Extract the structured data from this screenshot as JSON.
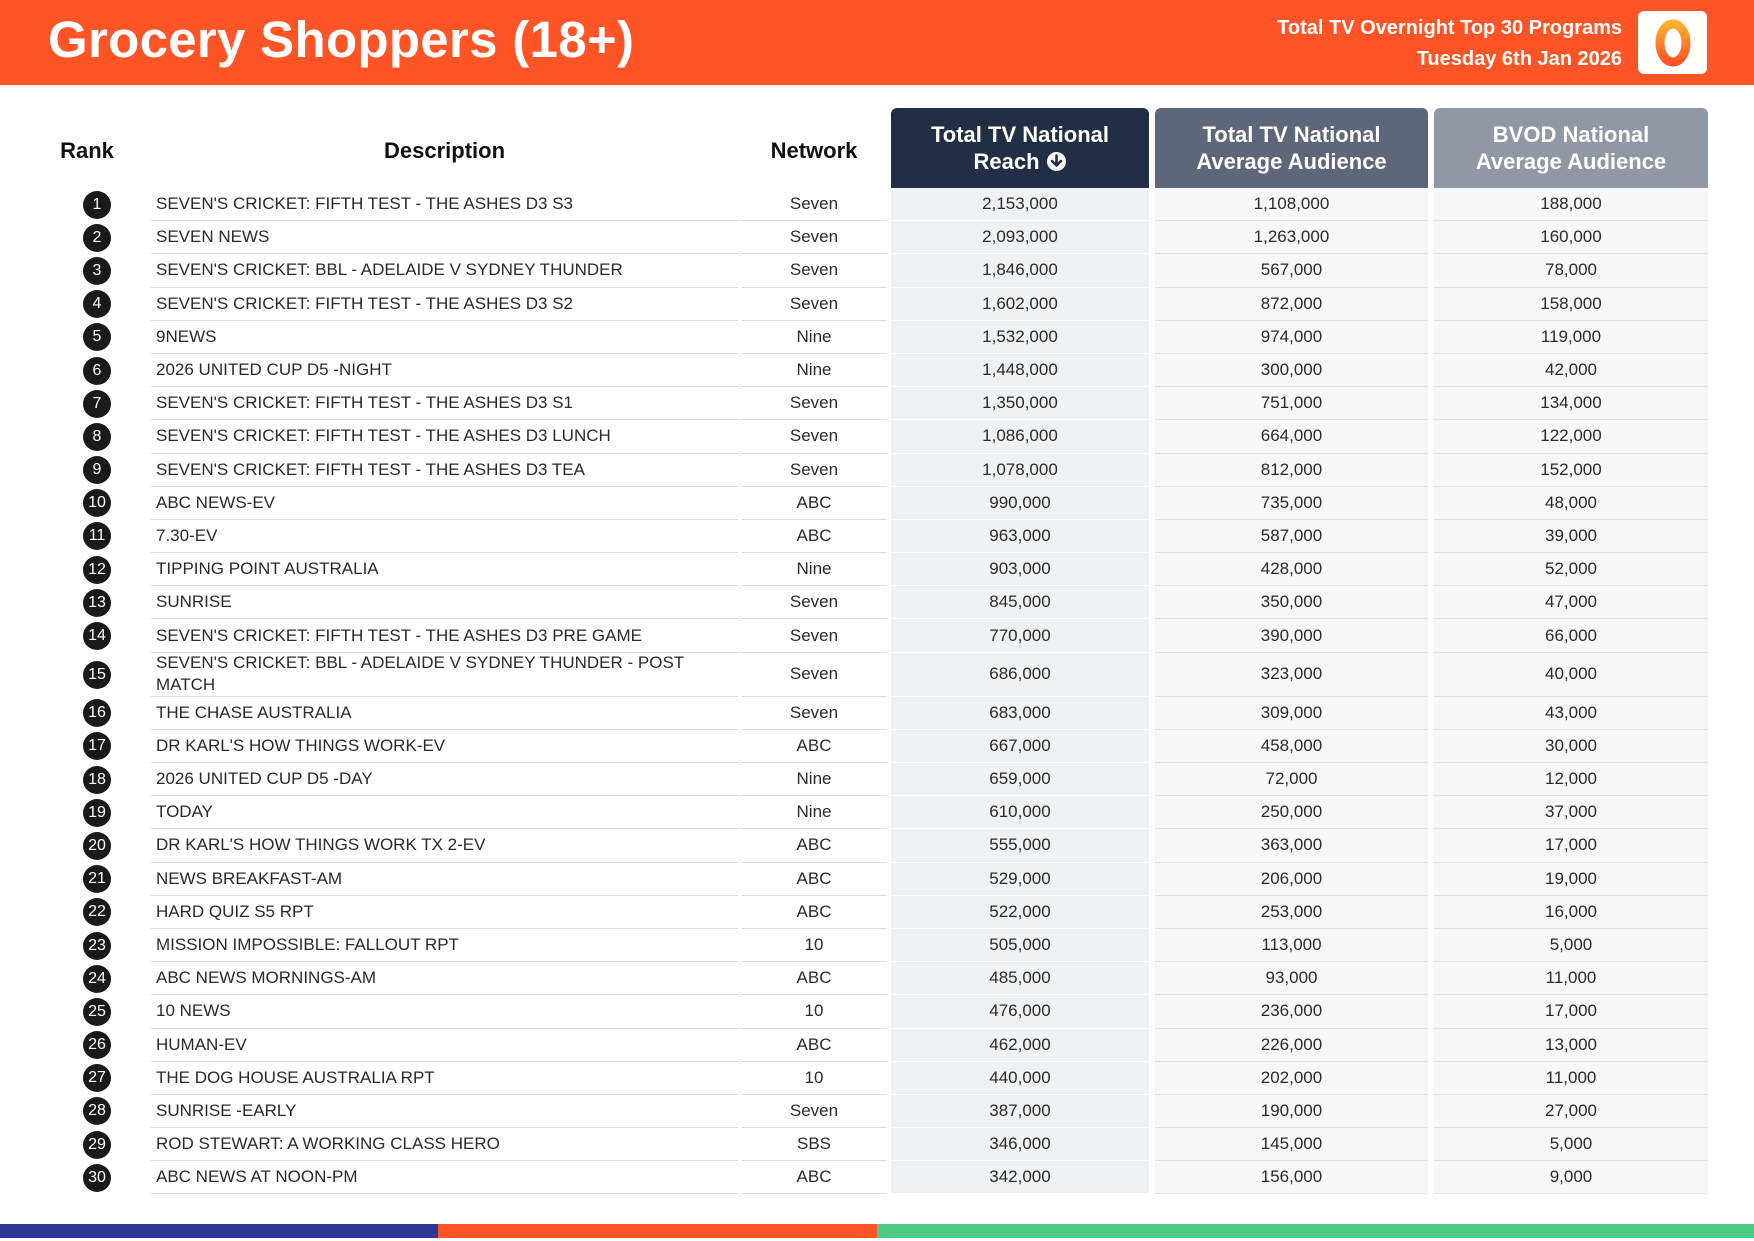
{
  "header": {
    "title": "Grocery Shoppers (18+)",
    "subtitle_line1": "Total TV Overnight Top 30 Programs",
    "subtitle_line2": "Tuesday 6th Jan 2026",
    "logo_icon": "oztam-logo-icon",
    "colors": {
      "header_bg": "#ff5426",
      "reach_header": "#212e45",
      "avg_header": "#5e6679",
      "bvod_header": "#9198a5"
    }
  },
  "columns": {
    "rank": "Rank",
    "description": "Description",
    "network": "Network",
    "reach_line1": "Total TV National",
    "reach_line2": "Reach",
    "avg_line1": "Total TV National",
    "avg_line2": "Average Audience",
    "bvod_line1": "BVOD National",
    "bvod_line2": "Average Audience",
    "sort_icon": "sort-descending-icon"
  },
  "rows": [
    {
      "rank": "1",
      "description": "SEVEN'S CRICKET: FIFTH TEST - THE ASHES D3 S3",
      "network": "Seven",
      "reach": "2,153,000",
      "avg": "1,108,000",
      "bvod": "188,000"
    },
    {
      "rank": "2",
      "description": "SEVEN NEWS",
      "network": "Seven",
      "reach": "2,093,000",
      "avg": "1,263,000",
      "bvod": "160,000"
    },
    {
      "rank": "3",
      "description": "SEVEN'S CRICKET: BBL - ADELAIDE V SYDNEY THUNDER",
      "network": "Seven",
      "reach": "1,846,000",
      "avg": "567,000",
      "bvod": "78,000"
    },
    {
      "rank": "4",
      "description": "SEVEN'S CRICKET: FIFTH TEST - THE ASHES D3 S2",
      "network": "Seven",
      "reach": "1,602,000",
      "avg": "872,000",
      "bvod": "158,000"
    },
    {
      "rank": "5",
      "description": "9NEWS",
      "network": "Nine",
      "reach": "1,532,000",
      "avg": "974,000",
      "bvod": "119,000"
    },
    {
      "rank": "6",
      "description": "2026 UNITED CUP D5 -NIGHT",
      "network": "Nine",
      "reach": "1,448,000",
      "avg": "300,000",
      "bvod": "42,000"
    },
    {
      "rank": "7",
      "description": "SEVEN'S CRICKET: FIFTH TEST - THE ASHES D3 S1",
      "network": "Seven",
      "reach": "1,350,000",
      "avg": "751,000",
      "bvod": "134,000"
    },
    {
      "rank": "8",
      "description": "SEVEN'S CRICKET: FIFTH TEST - THE ASHES D3 LUNCH",
      "network": "Seven",
      "reach": "1,086,000",
      "avg": "664,000",
      "bvod": "122,000"
    },
    {
      "rank": "9",
      "description": "SEVEN'S CRICKET: FIFTH TEST - THE ASHES D3 TEA",
      "network": "Seven",
      "reach": "1,078,000",
      "avg": "812,000",
      "bvod": "152,000"
    },
    {
      "rank": "10",
      "description": "ABC NEWS-EV",
      "network": "ABC",
      "reach": "990,000",
      "avg": "735,000",
      "bvod": "48,000"
    },
    {
      "rank": "11",
      "description": "7.30-EV",
      "network": "ABC",
      "reach": "963,000",
      "avg": "587,000",
      "bvod": "39,000"
    },
    {
      "rank": "12",
      "description": "TIPPING POINT AUSTRALIA",
      "network": "Nine",
      "reach": "903,000",
      "avg": "428,000",
      "bvod": "52,000"
    },
    {
      "rank": "13",
      "description": "SUNRISE",
      "network": "Seven",
      "reach": "845,000",
      "avg": "350,000",
      "bvod": "47,000"
    },
    {
      "rank": "14",
      "description": "SEVEN'S CRICKET: FIFTH TEST - THE ASHES D3 PRE GAME",
      "network": "Seven",
      "reach": "770,000",
      "avg": "390,000",
      "bvod": "66,000"
    },
    {
      "rank": "15",
      "description": "SEVEN'S CRICKET: BBL - ADELAIDE V SYDNEY THUNDER - POST MATCH",
      "network": "Seven",
      "reach": "686,000",
      "avg": "323,000",
      "bvod": "40,000"
    },
    {
      "rank": "16",
      "description": "THE CHASE AUSTRALIA",
      "network": "Seven",
      "reach": "683,000",
      "avg": "309,000",
      "bvod": "43,000"
    },
    {
      "rank": "17",
      "description": "DR KARL'S HOW THINGS WORK-EV",
      "network": "ABC",
      "reach": "667,000",
      "avg": "458,000",
      "bvod": "30,000"
    },
    {
      "rank": "18",
      "description": "2026 UNITED CUP D5 -DAY",
      "network": "Nine",
      "reach": "659,000",
      "avg": "72,000",
      "bvod": "12,000"
    },
    {
      "rank": "19",
      "description": "TODAY",
      "network": "Nine",
      "reach": "610,000",
      "avg": "250,000",
      "bvod": "37,000"
    },
    {
      "rank": "20",
      "description": "DR KARL'S HOW THINGS WORK TX 2-EV",
      "network": "ABC",
      "reach": "555,000",
      "avg": "363,000",
      "bvod": "17,000"
    },
    {
      "rank": "21",
      "description": "NEWS BREAKFAST-AM",
      "network": "ABC",
      "reach": "529,000",
      "avg": "206,000",
      "bvod": "19,000"
    },
    {
      "rank": "22",
      "description": "HARD QUIZ S5 RPT",
      "network": "ABC",
      "reach": "522,000",
      "avg": "253,000",
      "bvod": "16,000"
    },
    {
      "rank": "23",
      "description": "MISSION IMPOSSIBLE: FALLOUT RPT",
      "network": "10",
      "reach": "505,000",
      "avg": "113,000",
      "bvod": "5,000"
    },
    {
      "rank": "24",
      "description": "ABC NEWS MORNINGS-AM",
      "network": "ABC",
      "reach": "485,000",
      "avg": "93,000",
      "bvod": "11,000"
    },
    {
      "rank": "25",
      "description": "10 NEWS",
      "network": "10",
      "reach": "476,000",
      "avg": "236,000",
      "bvod": "17,000"
    },
    {
      "rank": "26",
      "description": "HUMAN-EV",
      "network": "ABC",
      "reach": "462,000",
      "avg": "226,000",
      "bvod": "13,000"
    },
    {
      "rank": "27",
      "description": "THE DOG HOUSE AUSTRALIA RPT",
      "network": "10",
      "reach": "440,000",
      "avg": "202,000",
      "bvod": "11,000"
    },
    {
      "rank": "28",
      "description": "SUNRISE -EARLY",
      "network": "Seven",
      "reach": "387,000",
      "avg": "190,000",
      "bvod": "27,000"
    },
    {
      "rank": "29",
      "description": "ROD STEWART: A WORKING CLASS HERO",
      "network": "SBS",
      "reach": "346,000",
      "avg": "145,000",
      "bvod": "5,000"
    },
    {
      "rank": "30",
      "description": "ABC NEWS AT NOON-PM",
      "network": "ABC",
      "reach": "342,000",
      "avg": "156,000",
      "bvod": "9,000"
    }
  ]
}
